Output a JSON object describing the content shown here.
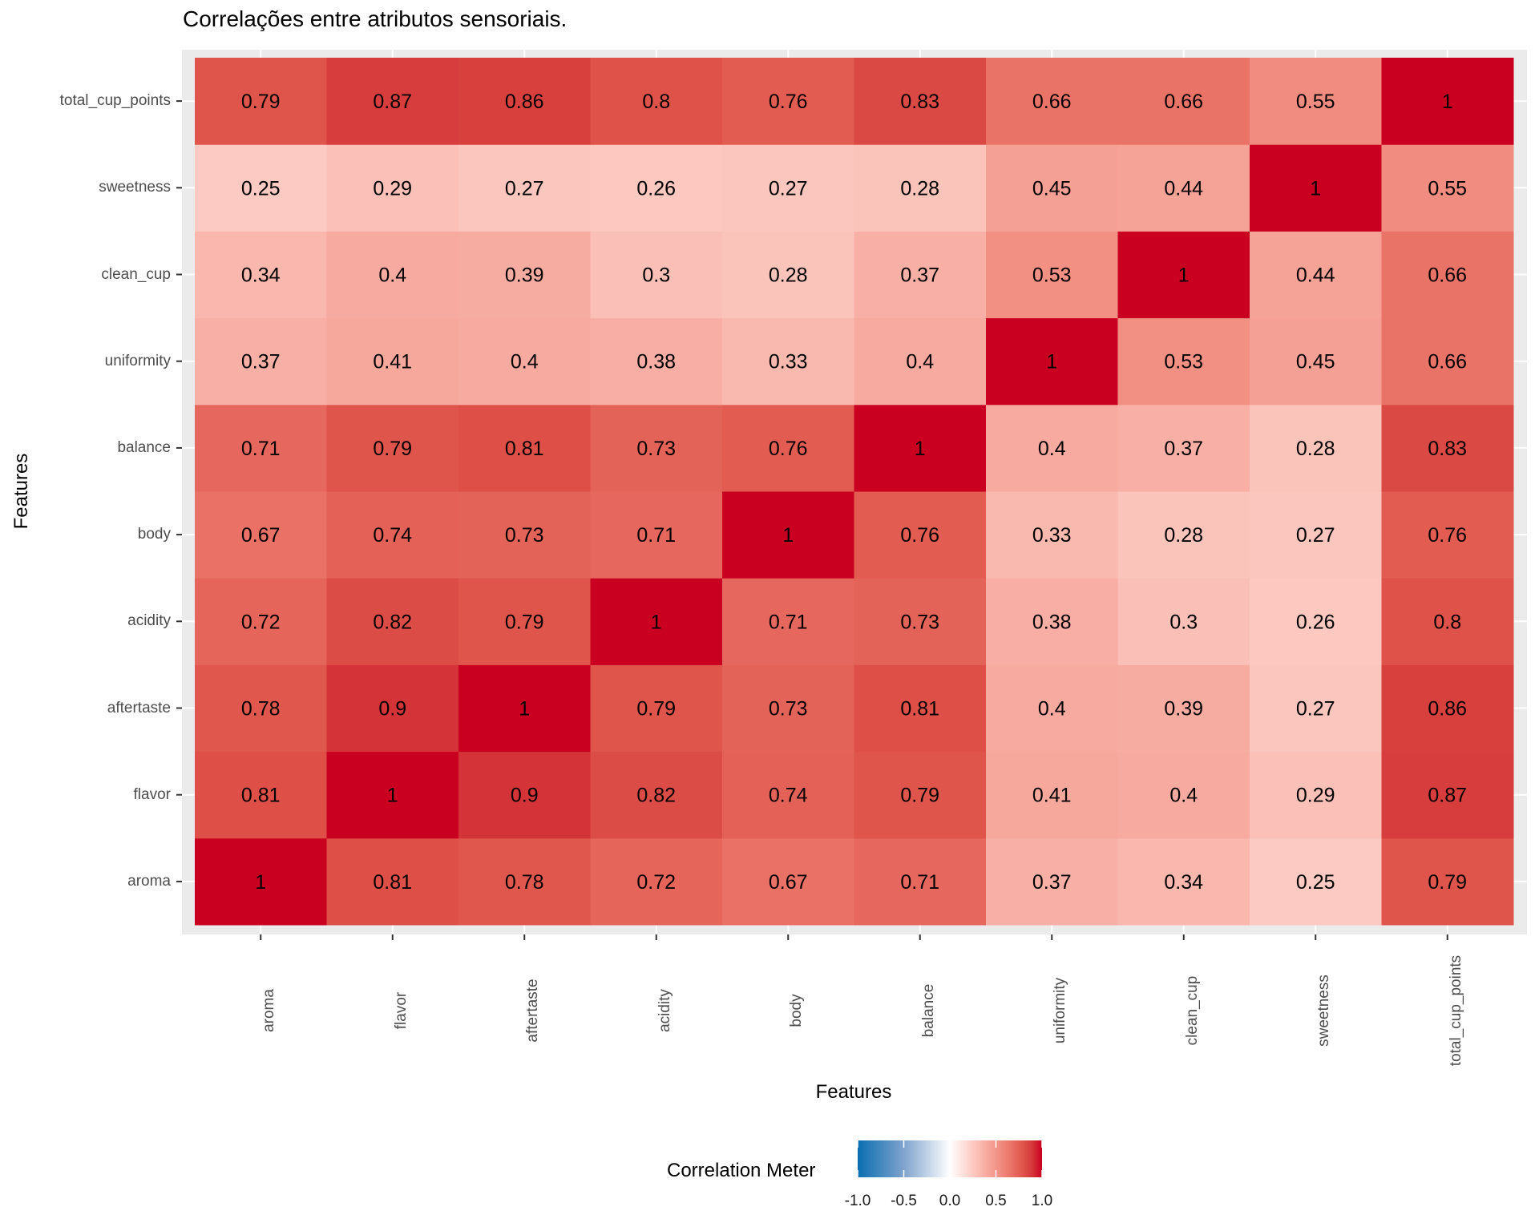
{
  "chart_data": {
    "type": "heatmap",
    "title": "Correlações entre atributos sensoriais.",
    "xlabel": "Features",
    "ylabel": "Features",
    "x_categories": [
      "aroma",
      "flavor",
      "aftertaste",
      "acidity",
      "body",
      "balance",
      "uniformity",
      "clean_cup",
      "sweetness",
      "total_cup_points"
    ],
    "y_categories": [
      "aroma",
      "flavor",
      "aftertaste",
      "acidity",
      "body",
      "balance",
      "uniformity",
      "clean_cup",
      "sweetness",
      "total_cup_points"
    ],
    "y_order": "bottom-to-top",
    "values": [
      [
        1,
        0.81,
        0.78,
        0.72,
        0.67,
        0.71,
        0.37,
        0.34,
        0.25,
        0.79
      ],
      [
        0.81,
        1,
        0.9,
        0.82,
        0.74,
        0.79,
        0.41,
        0.4,
        0.29,
        0.87
      ],
      [
        0.78,
        0.9,
        1,
        0.79,
        0.73,
        0.81,
        0.4,
        0.39,
        0.27,
        0.86
      ],
      [
        0.72,
        0.82,
        0.79,
        1,
        0.71,
        0.73,
        0.38,
        0.3,
        0.26,
        0.8
      ],
      [
        0.67,
        0.74,
        0.73,
        0.71,
        1,
        0.76,
        0.33,
        0.28,
        0.27,
        0.76
      ],
      [
        0.71,
        0.79,
        0.81,
        0.73,
        0.76,
        1,
        0.4,
        0.37,
        0.28,
        0.83
      ],
      [
        0.37,
        0.41,
        0.4,
        0.38,
        0.33,
        0.4,
        1,
        0.53,
        0.45,
        0.66
      ],
      [
        0.34,
        0.4,
        0.39,
        0.3,
        0.28,
        0.37,
        0.53,
        1,
        0.44,
        0.66
      ],
      [
        0.25,
        0.29,
        0.27,
        0.26,
        0.27,
        0.28,
        0.45,
        0.44,
        1,
        0.55
      ],
      [
        0.79,
        0.87,
        0.86,
        0.8,
        0.76,
        0.83,
        0.66,
        0.66,
        0.55,
        1
      ]
    ],
    "value_labels_shown": true,
    "legend": {
      "title": "Correlation Meter",
      "position": "bottom",
      "range": [
        -1.0,
        1.0
      ],
      "tick_labels": [
        "-1.0",
        "-0.5",
        "0.0",
        "0.5",
        "1.0"
      ],
      "tick_values": [
        -1.0,
        -0.5,
        0.0,
        0.5,
        1.0
      ]
    },
    "color_scale": {
      "stops": [
        {
          "value": -1.0,
          "color": "#0A6EB1"
        },
        {
          "value": -0.5,
          "color": "#7FA3CD"
        },
        {
          "value": 0.0,
          "color": "#FFFFFF"
        },
        {
          "value": 0.25,
          "color": "#FCCAC2"
        },
        {
          "value": 0.4,
          "color": "#F7AA9F"
        },
        {
          "value": 0.53,
          "color": "#F29084"
        },
        {
          "value": 0.66,
          "color": "#EA7368"
        },
        {
          "value": 0.79,
          "color": "#DF554B"
        },
        {
          "value": 0.9,
          "color": "#D43437"
        },
        {
          "value": 1.0,
          "color": "#CA0020"
        }
      ]
    },
    "grid": true,
    "panel_background": "#EBEBEB"
  }
}
